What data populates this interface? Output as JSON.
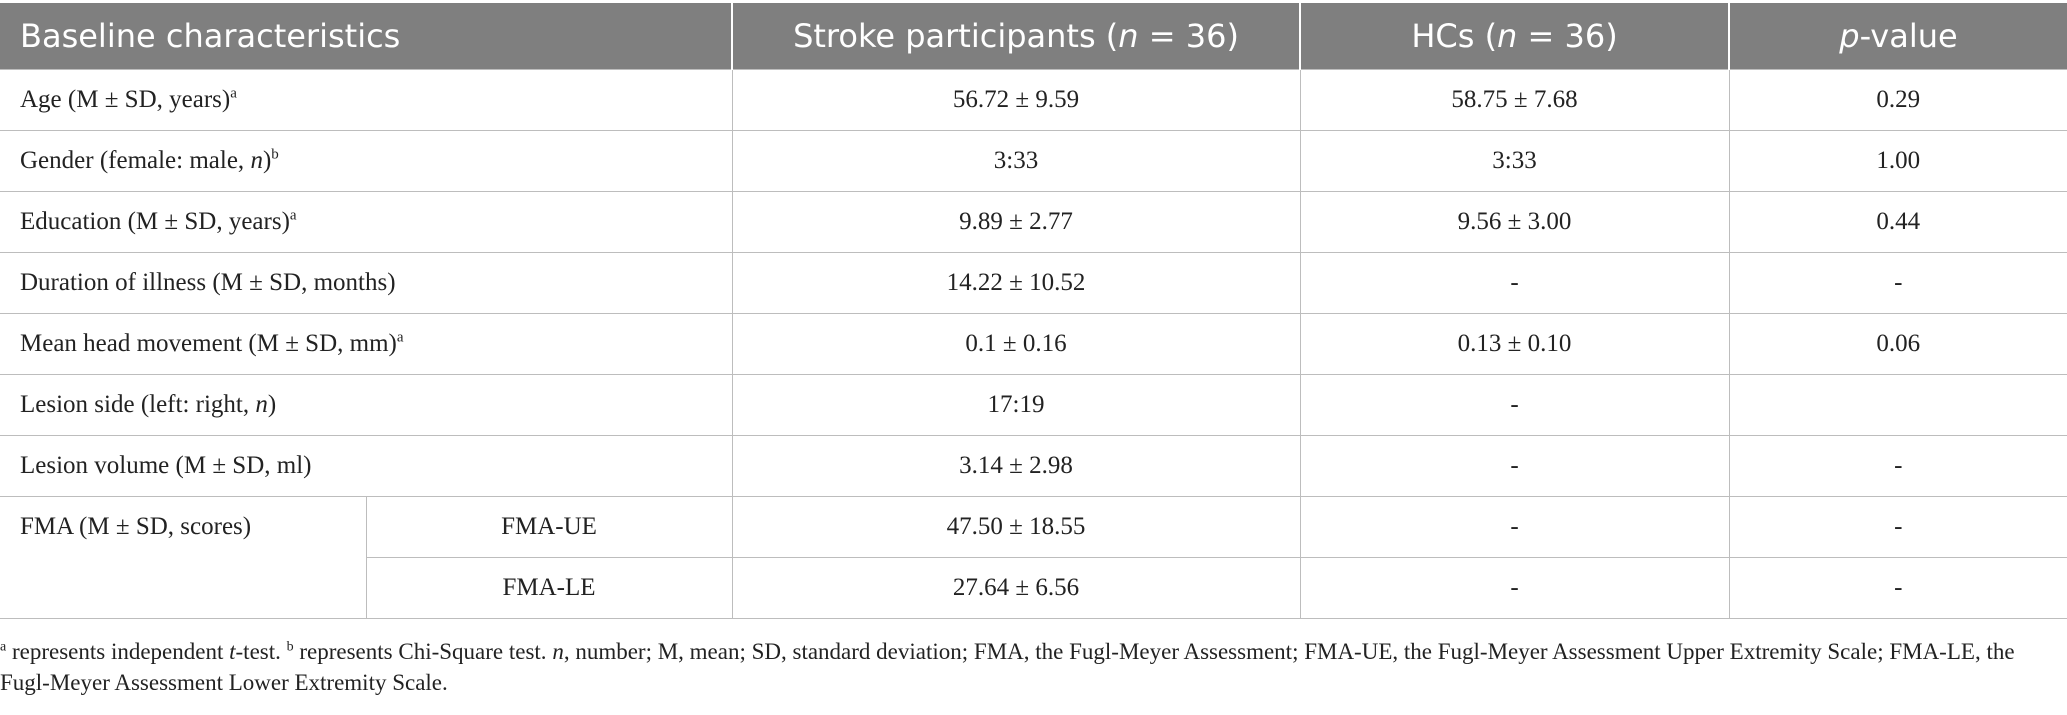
{
  "header": {
    "col1": "Baseline characteristics",
    "col2_a": "Stroke participants (",
    "col2_n": "n",
    "col2_b": " = 36)",
    "col3_a": "HCs (",
    "col3_n": "n",
    "col3_b": " = 36)",
    "col4_p": "p",
    "col4_b": "-value"
  },
  "rows": [
    {
      "label": "Age (M ± SD, years)",
      "sup": "a",
      "stroke": "56.72 ± 9.59",
      "hc": "58.75 ± 7.68",
      "p": "0.29"
    },
    {
      "label_a": "Gender (female: male, ",
      "label_n": "n",
      "label_b": ")",
      "sup": "b",
      "stroke": "3:33",
      "hc": "3:33",
      "p": "1.00"
    },
    {
      "label": "Education (M ± SD, years)",
      "sup": "a",
      "stroke": "9.89 ± 2.77",
      "hc": "9.56 ± 3.00",
      "p": "0.44"
    },
    {
      "label": "Duration of illness (M ± SD, months)",
      "stroke": "14.22 ± 10.52",
      "hc": "-",
      "p": "-"
    },
    {
      "label": "Mean head movement (M ± SD, mm)",
      "sup": "a",
      "stroke": "0.1 ± 0.16",
      "hc": "0.13 ± 0.10",
      "p": "0.06"
    },
    {
      "label_a": "Lesion side (left: right, ",
      "label_n": "n",
      "label_b": ")",
      "stroke": "17:19",
      "hc": "-",
      "p": ""
    },
    {
      "label": "Lesion volume (M ± SD, ml)",
      "stroke": "3.14 ± 2.98",
      "hc": "-",
      "p": "-"
    }
  ],
  "fma": {
    "label": "FMA (M ± SD, scores)",
    "sub": [
      {
        "label": "FMA-UE",
        "stroke": "47.50 ± 18.55",
        "hc": "-",
        "p": "-"
      },
      {
        "label": "FMA-LE",
        "stroke": "27.64 ± 6.56",
        "hc": "-",
        "p": "-"
      }
    ]
  },
  "footnote": {
    "sup_a": "a",
    "part1": " represents independent ",
    "t": "t",
    "part2": "-test. ",
    "sup_b": "b",
    "part3": " represents Chi-Square test. ",
    "n": "n",
    "part4": ", number; M, mean; SD, standard deviation; FMA, the Fugl-Meyer Assessment; FMA-UE, the Fugl-Meyer Assessment Upper Extremity Scale; FMA-LE, the Fugl-Meyer Assessment Lower Extremity Scale."
  }
}
